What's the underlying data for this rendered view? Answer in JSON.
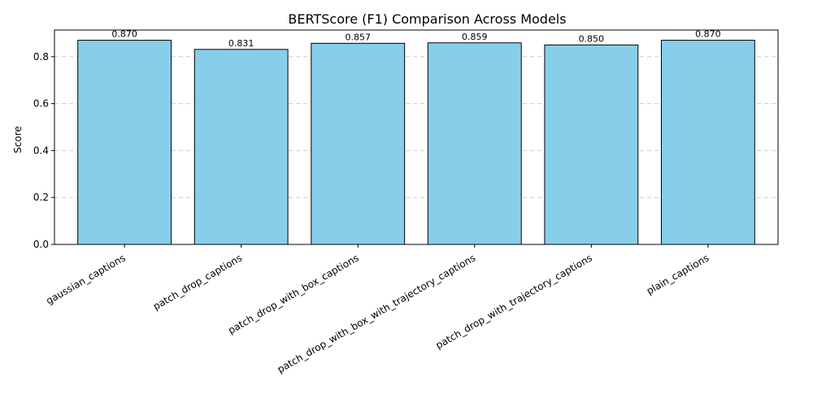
{
  "chart_data": {
    "type": "bar",
    "title": "BERTScore (F1) Comparison Across Models",
    "xlabel": "",
    "ylabel": "Score",
    "categories": [
      "gaussian_captions",
      "patch_drop_captions",
      "patch_drop_with_box_captions",
      "patch_drop_with_box_with_trajectory_captions",
      "patch_drop_with_trajectory_captions",
      "plain_captions"
    ],
    "values": [
      0.87,
      0.831,
      0.857,
      0.859,
      0.85,
      0.87
    ],
    "value_labels": [
      "0.870",
      "0.831",
      "0.857",
      "0.859",
      "0.850",
      "0.870"
    ],
    "y_ticks": [
      0.0,
      0.2,
      0.4,
      0.6,
      0.8
    ],
    "y_tick_labels": [
      "0.0",
      "0.2",
      "0.4",
      "0.6",
      "0.8"
    ],
    "ylim": [
      0,
      0.9135
    ],
    "grid": "y-dashed",
    "legend": "none",
    "colors": {
      "bar_fill": "#87CEEB",
      "bar_stroke": "#000000",
      "grid": "#cccccc"
    }
  }
}
